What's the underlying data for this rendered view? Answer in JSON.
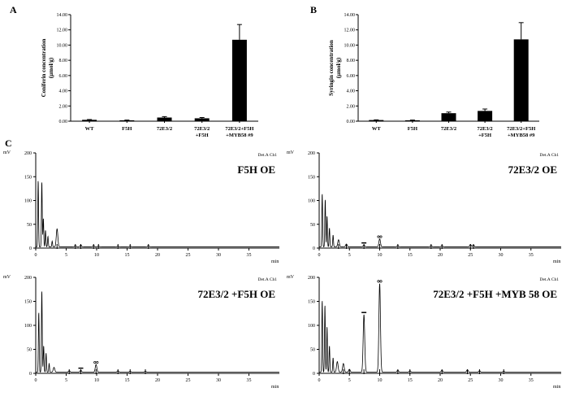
{
  "chart_data": [
    {
      "type": "bar",
      "panel": "A",
      "ylabel_lines": [
        "Coniferin concentration",
        "(μmol/g)"
      ],
      "ylim": [
        0,
        14
      ],
      "yticks": [
        "0.00",
        "2.00",
        "4.00",
        "6.00",
        "8.00",
        "10.00",
        "12.00",
        "14.00"
      ],
      "categories": [
        [
          "WT"
        ],
        [
          "F5H"
        ],
        [
          "72E3/2"
        ],
        [
          "72E3/2",
          "+F5H"
        ],
        [
          "72E3/2+F5H",
          "+MYB58 #9"
        ]
      ],
      "values": [
        0.18,
        0.12,
        0.48,
        0.38,
        10.7
      ],
      "errors": [
        0.04,
        0.03,
        0.12,
        0.1,
        2.0
      ],
      "grid": false,
      "bar_color": "#000000"
    },
    {
      "type": "bar",
      "panel": "B",
      "ylabel_lines": [
        "Syringin concentration",
        "(μmol/g)"
      ],
      "ylim": [
        0,
        14
      ],
      "yticks": [
        "0.00",
        "2.00",
        "4.00",
        "6.00",
        "8.00",
        "10.00",
        "12.00",
        "14.00"
      ],
      "categories": [
        [
          "WT"
        ],
        [
          "F5H"
        ],
        [
          "72E3/2"
        ],
        [
          "72E3/2",
          "+F5H"
        ],
        [
          "72E3/2+F5H",
          "+MYB58 #9"
        ]
      ],
      "values": [
        0.15,
        0.12,
        1.05,
        1.35,
        10.75
      ],
      "errors": [
        0.03,
        0.03,
        0.15,
        0.25,
        2.2
      ],
      "grid": false,
      "bar_color": "#000000"
    },
    {
      "type": "line",
      "panel": "C",
      "title": "F5H OE",
      "detector": "Det.A Ch1",
      "yunit": "mV",
      "xunit": "min",
      "ylim": [
        0,
        200
      ],
      "xlim": [
        0,
        40
      ],
      "yticks": [
        "0",
        "50",
        "100",
        "150",
        "200"
      ],
      "xticks": [
        "0",
        "5",
        "10",
        "15",
        "20",
        "25",
        "30",
        "35"
      ],
      "peaks": [
        [
          0.4,
          140
        ],
        [
          1.0,
          137
        ],
        [
          1.25,
          60
        ],
        [
          1.6,
          35
        ],
        [
          2.0,
          22
        ],
        [
          2.7,
          12
        ],
        [
          3.5,
          38
        ],
        [
          6.5,
          3
        ],
        [
          7.4,
          4
        ],
        [
          9.5,
          3
        ],
        [
          10.3,
          2
        ],
        [
          13.5,
          2
        ],
        [
          15.5,
          2
        ],
        [
          18.5,
          3
        ]
      ],
      "labeled_peaks": []
    },
    {
      "type": "line",
      "panel": "C",
      "title": "72E3/2 OE",
      "detector": "Det.A Ch1",
      "yunit": "mV",
      "xunit": "min",
      "ylim": [
        0,
        200
      ],
      "xlim": [
        0,
        40
      ],
      "yticks": [
        "0",
        "50",
        "100",
        "150",
        "200"
      ],
      "xticks": [
        "0",
        "5",
        "10",
        "15",
        "20",
        "25",
        "30",
        "35"
      ],
      "peaks": [
        [
          0.5,
          112
        ],
        [
          1.0,
          100
        ],
        [
          1.3,
          65
        ],
        [
          1.7,
          40
        ],
        [
          2.3,
          25
        ],
        [
          3.2,
          15
        ],
        [
          4.5,
          6
        ],
        [
          7.4,
          4
        ],
        [
          10.0,
          17
        ],
        [
          13.0,
          3
        ],
        [
          18.5,
          3
        ],
        [
          20.3,
          3
        ],
        [
          25.0,
          5
        ],
        [
          25.5,
          4
        ]
      ],
      "labeled_peaks": [
        7.4,
        10.0
      ]
    },
    {
      "type": "line",
      "panel": "C",
      "title": "72E3/2 +F5H OE",
      "detector": "Det.A Ch1",
      "yunit": "mV",
      "xunit": "min",
      "ylim": [
        0,
        200
      ],
      "xlim": [
        0,
        40
      ],
      "yticks": [
        "0",
        "50",
        "100",
        "150",
        "200"
      ],
      "xticks": [
        "0",
        "5",
        "10",
        "15",
        "20",
        "25",
        "30",
        "35"
      ],
      "peaks": [
        [
          0.5,
          125
        ],
        [
          1.0,
          170
        ],
        [
          1.3,
          55
        ],
        [
          1.7,
          40
        ],
        [
          2.2,
          18
        ],
        [
          3.0,
          10
        ],
        [
          5.5,
          3
        ],
        [
          7.4,
          4
        ],
        [
          9.9,
          16
        ],
        [
          13.5,
          3
        ],
        [
          15.5,
          2
        ],
        [
          18.0,
          2
        ]
      ],
      "labeled_peaks": [
        7.4,
        9.9
      ]
    },
    {
      "type": "line",
      "panel": "C",
      "title": "72E3/2 +F5H +MYB 58 OE",
      "detector": "Det.A Ch1",
      "yunit": "mV",
      "xunit": "min",
      "ylim": [
        0,
        200
      ],
      "xlim": [
        0,
        40
      ],
      "yticks": [
        "0",
        "50",
        "100",
        "150",
        "200"
      ],
      "xticks": [
        "0",
        "5",
        "10",
        "15",
        "20",
        "25",
        "30",
        "35"
      ],
      "peaks": [
        [
          0.5,
          150
        ],
        [
          0.95,
          140
        ],
        [
          1.3,
          95
        ],
        [
          1.7,
          55
        ],
        [
          2.3,
          30
        ],
        [
          3.0,
          22
        ],
        [
          4.0,
          18
        ],
        [
          5.0,
          6
        ],
        [
          7.4,
          120
        ],
        [
          10.0,
          185
        ],
        [
          13.0,
          4
        ],
        [
          15.0,
          3
        ],
        [
          20.3,
          4
        ],
        [
          24.5,
          5
        ],
        [
          26.5,
          3
        ],
        [
          30.5,
          2
        ]
      ],
      "labeled_peaks": [
        7.4,
        10.0
      ]
    }
  ]
}
